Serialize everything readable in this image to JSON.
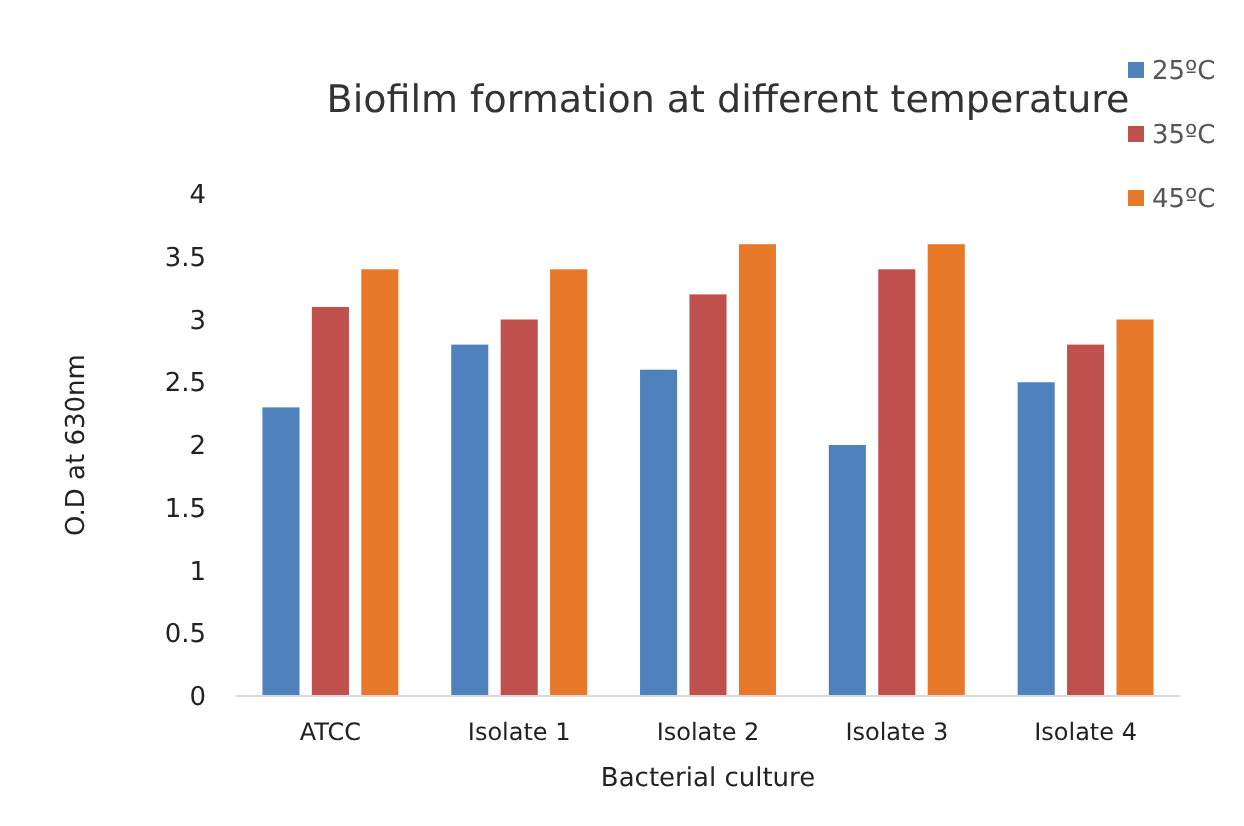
{
  "chart_data": {
    "type": "bar",
    "title": "Biofilm formation at different temperature",
    "xlabel": "Bacterial culture",
    "ylabel": "O.D at 630nm",
    "categories": [
      "ATCC",
      "Isolate 1",
      "Isolate 2",
      "Isolate 3",
      "Isolate 4"
    ],
    "series": [
      {
        "name": "25ºC",
        "color": "#4f81bd",
        "values": [
          2.3,
          2.8,
          2.6,
          2.0,
          2.5
        ]
      },
      {
        "name": "35ºC",
        "color": "#c0504d",
        "values": [
          3.1,
          3.0,
          3.2,
          3.4,
          2.8
        ]
      },
      {
        "name": "45ºC",
        "color": "#e8782a",
        "values": [
          3.4,
          3.4,
          3.6,
          3.6,
          3.0
        ]
      }
    ],
    "ylim": [
      0,
      4
    ],
    "yticks": [
      0,
      0.5,
      1,
      1.5,
      2,
      2.5,
      3,
      3.5,
      4
    ],
    "grid": false,
    "legend": "top right"
  }
}
